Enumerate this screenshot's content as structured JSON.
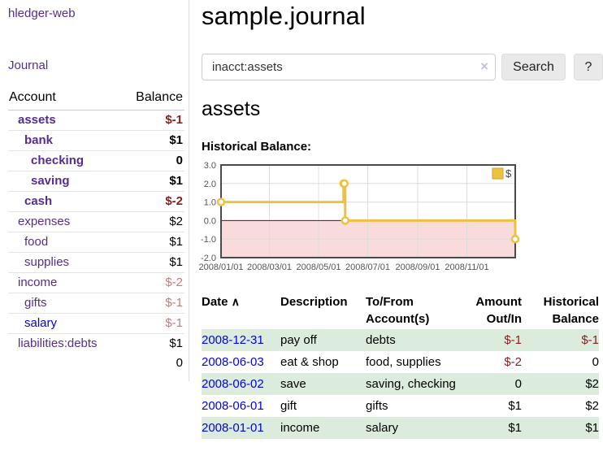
{
  "colors": {
    "link_purple": "#552d90",
    "link_blue": "#0000ee",
    "negative_strong": "#8c1b1b",
    "negative_muted": "#c47c7c",
    "row_shade_green": "#dcecdc",
    "series_gold": "#edc240"
  },
  "sidebar": {
    "brand": "hledger-web",
    "journal_link": "Journal",
    "accounts_table": {
      "headers": {
        "account": "Account",
        "balance": "Balance"
      },
      "rows": [
        {
          "name": "assets",
          "level": 1,
          "strong": true,
          "name_style": "purple",
          "balance": "$-1",
          "balance_style": "neg-strong"
        },
        {
          "name": "bank",
          "level": 2,
          "strong": true,
          "name_style": "purple",
          "balance": "$1",
          "balance_style": "pos"
        },
        {
          "name": "checking",
          "level": 3,
          "strong": true,
          "name_style": "purple",
          "balance": "0",
          "balance_style": "pos"
        },
        {
          "name": "saving",
          "level": 3,
          "strong": true,
          "name_style": "purple",
          "balance": "$1",
          "balance_style": "pos"
        },
        {
          "name": "cash",
          "level": 2,
          "strong": true,
          "name_style": "purple",
          "balance": "$-2",
          "balance_style": "neg-strong"
        },
        {
          "name": "expenses",
          "level": 1,
          "strong": false,
          "name_style": "purple",
          "balance": "$2",
          "balance_style": "pos"
        },
        {
          "name": "food",
          "level": 2,
          "strong": false,
          "name_style": "purple",
          "balance": "$1",
          "balance_style": "pos"
        },
        {
          "name": "supplies",
          "level": 2,
          "strong": false,
          "name_style": "purple",
          "balance": "$1",
          "balance_style": "pos"
        },
        {
          "name": "income",
          "level": 1,
          "strong": false,
          "name_style": "purple",
          "balance": "$-2",
          "balance_style": "neg-muted"
        },
        {
          "name": "gifts",
          "level": 2,
          "strong": false,
          "name_style": "purple",
          "balance": "$-1",
          "balance_style": "neg-muted"
        },
        {
          "name": "salary",
          "level": 2,
          "strong": false,
          "name_style": "blue",
          "balance": "$-1",
          "balance_style": "neg-muted"
        },
        {
          "name": "liabilities:debts",
          "level": 1,
          "strong": false,
          "name_style": "purple",
          "balance": "$1",
          "balance_style": "pos"
        }
      ],
      "total": "0"
    }
  },
  "header": {
    "title": "sample.journal"
  },
  "search": {
    "value": "inacct:assets",
    "clear_icon": "×",
    "search_button": "Search",
    "help_button": "?"
  },
  "account_page": {
    "heading": "assets",
    "chart_label": "Historical Balance:"
  },
  "chart_data": {
    "type": "line",
    "title": "Historical Balance",
    "style": "step",
    "series": [
      {
        "name": "$",
        "color": "#edc240",
        "points": [
          [
            "2008-01-01",
            1
          ],
          [
            "2008-06-01",
            2
          ],
          [
            "2008-06-02",
            2
          ],
          [
            "2008-06-03",
            0
          ],
          [
            "2008-12-31",
            -1
          ]
        ]
      }
    ],
    "x_ticks": [
      "2008/01/01",
      "2008/03/01",
      "2008/05/01",
      "2008/07/01",
      "2008/09/01",
      "2008/11/01"
    ],
    "y_ticks": [
      3.0,
      2.0,
      1.0,
      0.0,
      -1.0,
      -2.0
    ],
    "xlim": [
      "2008-01-01",
      "2008-12-31"
    ],
    "ylim": [
      -2,
      3
    ],
    "grid": true,
    "legend": {
      "label": "$",
      "position": "top-right"
    },
    "zero_line_color": "#8b0000",
    "below_zero_fill": "#f9dbdb"
  },
  "transactions": {
    "headers": {
      "date": "Date",
      "sort_icon": "∧",
      "description": "Description",
      "accounts": "To/From Account(s)",
      "amount": "Amount Out/In",
      "balance": "Historical Balance"
    },
    "rows": [
      {
        "date": "2008-12-31",
        "description": "pay off",
        "accounts": "debts",
        "amount": "$-1",
        "amount_neg": true,
        "balance": "$-1",
        "balance_neg": true,
        "shade": true
      },
      {
        "date": "2008-06-03",
        "description": "eat & shop",
        "accounts": "food, supplies",
        "amount": "$-2",
        "amount_neg": true,
        "balance": "0",
        "balance_neg": false,
        "shade": false
      },
      {
        "date": "2008-06-02",
        "description": "save",
        "accounts": "saving, checking",
        "amount": "0",
        "amount_neg": false,
        "balance": "$2",
        "balance_neg": false,
        "shade": true
      },
      {
        "date": "2008-06-01",
        "description": "gift",
        "accounts": "gifts",
        "amount": "$1",
        "amount_neg": false,
        "balance": "$2",
        "balance_neg": false,
        "shade": false
      },
      {
        "date": "2008-01-01",
        "description": "income",
        "accounts": "salary",
        "amount": "$1",
        "amount_neg": false,
        "balance": "$1",
        "balance_neg": false,
        "shade": true
      }
    ]
  }
}
